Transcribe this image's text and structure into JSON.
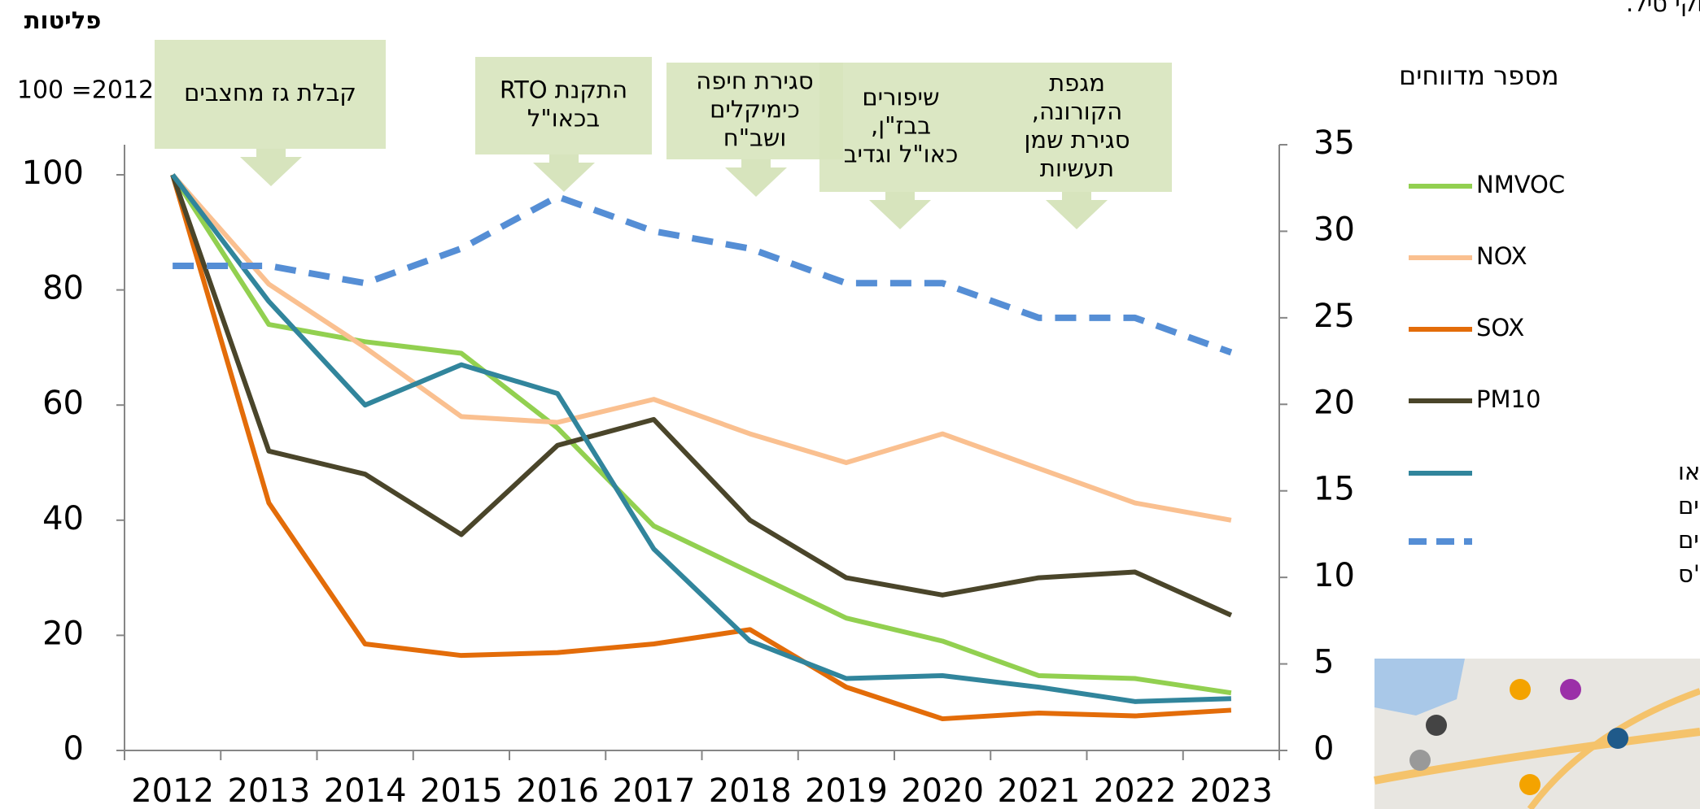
{
  "chart_data": {
    "type": "line",
    "top_note": "לפסולת שנשרפה בשל פגיעות החקי טיל.",
    "y_label_lines": [
      "פליטות",
      "100 =2012"
    ],
    "y2_label": "מספר מדווחים",
    "categories": [
      "2012",
      "2013",
      "2014",
      "2015",
      "2016",
      "2017",
      "2018",
      "2019",
      "2020",
      "2021",
      "2022",
      "2023"
    ],
    "ylim": [
      0,
      100
    ],
    "yticks": [
      0,
      20,
      40,
      60,
      80,
      100
    ],
    "y2lim": [
      0,
      35
    ],
    "y2ticks": [
      0,
      5,
      10,
      15,
      20,
      25,
      30,
      35
    ],
    "series": [
      {
        "name": [
          "NMVOC"
        ],
        "color": "#92d050",
        "values": [
          100,
          74,
          71,
          69,
          56,
          39,
          31,
          23,
          19,
          13,
          12.5,
          10
        ]
      },
      {
        "name": [
          "NOX"
        ],
        "color": "#fac090",
        "values": [
          100,
          81,
          70,
          58,
          57,
          61,
          55,
          50,
          55,
          49,
          43,
          40
        ]
      },
      {
        "name": [
          "SOX"
        ],
        "color": "#e36c09",
        "values": [
          100,
          43,
          18.5,
          16.5,
          17,
          18.5,
          21,
          11,
          5.5,
          6.5,
          6,
          7
        ]
      },
      {
        "name": [
          "PM10"
        ],
        "color": "#4a452a",
        "values": [
          100,
          52,
          48,
          37.5,
          53,
          57.5,
          40,
          30,
          27,
          30,
          31,
          23.5
        ]
      },
      {
        "name": [
          "חומרים חשודים או",
          "מוכרים כמסרטנים"
        ],
        "color": "#31859c",
        "values": [
          100,
          78,
          60,
          67,
          62,
          35,
          19,
          12.5,
          13,
          11,
          8.5,
          9
        ]
      },
      {
        "name": [
          "מספר מדווחים",
          "למפל\"ס"
        ],
        "color": "#558ed5",
        "dashed": true,
        "axis": "y2",
        "values": [
          28,
          28,
          27,
          29,
          32,
          30,
          29,
          27,
          27,
          25,
          25,
          23
        ]
      }
    ],
    "annotations": [
      {
        "lines": [
          "קבלת גז מחצבים"
        ]
      },
      {
        "lines": [
          "התקנת RTO",
          "בכאו\"ל"
        ]
      },
      {
        "lines": [
          "סגירת חיפה",
          "כימיקלים",
          "ושב\"ח"
        ]
      },
      {
        "lines": [
          "שיפורים",
          "בבז\"ן,",
          "כאו\"ל וגדיב"
        ]
      },
      {
        "lines": [
          "מגפת",
          "הקורונה,",
          "סגירת שמן",
          "תעשיות"
        ]
      }
    ]
  }
}
